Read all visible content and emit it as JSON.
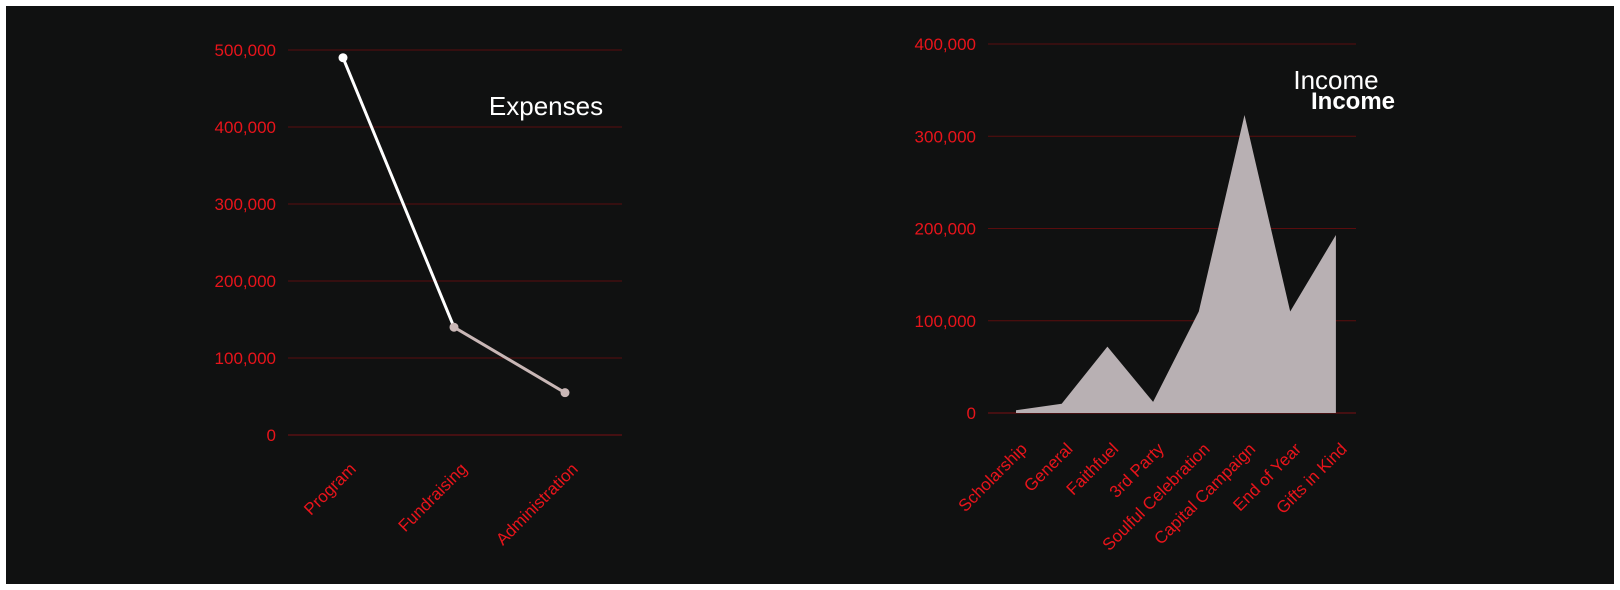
{
  "colors": {
    "background": "#101111",
    "gridline": "#5a0d0e",
    "axis_text": "#e8141b",
    "line_primary": "#ffffff",
    "line_secondary": "#c9b7b6",
    "area_fill": "#b8b0b3",
    "title": "#ffffff"
  },
  "chart_data": [
    {
      "type": "line",
      "title": "Expenses",
      "categories": [
        "Program",
        "Fundraising",
        "Administration"
      ],
      "series": [
        {
          "values": [
            490000,
            140000,
            55000
          ]
        }
      ],
      "yticks": [
        "0",
        "100,000",
        "200,000",
        "300,000",
        "400,000",
        "500,000"
      ],
      "ylim": [
        0,
        500000
      ],
      "grid": true,
      "legend": "none"
    },
    {
      "type": "area",
      "title": "Income",
      "title_overlay": "Income",
      "categories": [
        "Scholarship",
        "General",
        "Faithfuel",
        "3rd Party",
        "Soulful Celebration",
        "Capital Campaign",
        "End of Year",
        "Gifts in Kind"
      ],
      "series": [
        {
          "values": [
            3000,
            10000,
            72000,
            12000,
            110000,
            323000,
            110000,
            193000
          ]
        }
      ],
      "yticks": [
        "0",
        "100,000",
        "200,000",
        "300,000",
        "400,000"
      ],
      "ylim": [
        0,
        400000
      ],
      "grid": true,
      "legend": "none"
    }
  ]
}
